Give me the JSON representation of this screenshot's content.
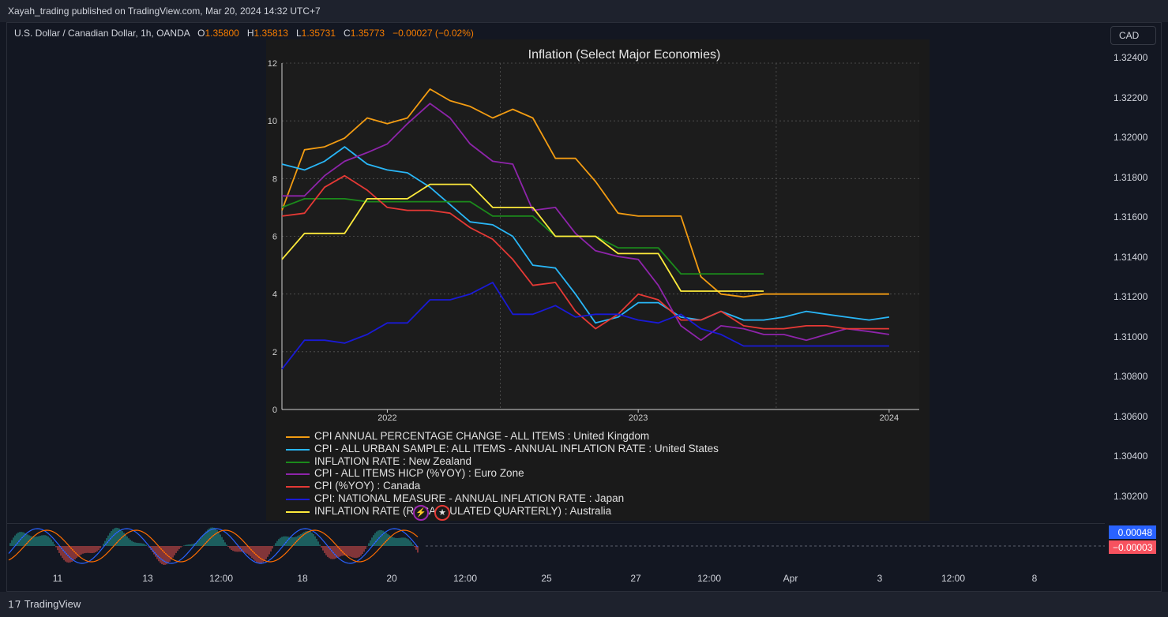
{
  "header": {
    "published_text": "Xayah_trading published on TradingView.com, Mar 20, 2024 14:32 UTC+7"
  },
  "symbol": {
    "name": "U.S. Dollar / Canadian Dollar, 1h, OANDA",
    "open_label": "O",
    "open": "1.35800",
    "high_label": "H",
    "high": "1.35813",
    "low_label": "L",
    "low": "1.35731",
    "close_label": "C",
    "close": "1.35773",
    "change": "−0.00027 (−0.02%)"
  },
  "currency_button": "CAD",
  "price_axis": [
    "1.32400",
    "1.32200",
    "1.32000",
    "1.31800",
    "1.31600",
    "1.31400",
    "1.31200",
    "1.31000",
    "1.30800",
    "1.30600",
    "1.30400",
    "1.30200"
  ],
  "oscillator": {
    "badge_up": "0.00048",
    "badge_down": "−0.00003",
    "badge_up_color": "#2962ff",
    "badge_down_color": "#f7525f"
  },
  "time_axis": [
    "11",
    "13",
    "12:00",
    "18",
    "20",
    "12:00",
    "25",
    "27",
    "12:00",
    "Apr",
    "3",
    "12:00",
    "8"
  ],
  "footer": {
    "brand": "TradingView"
  },
  "colors": {
    "background": "#131722",
    "inset_background": "#1a1a1a",
    "osc_up": "#26a69a",
    "osc_down": "#ef5350"
  },
  "chart_data": {
    "type": "line",
    "title": "Inflation (Select Major Economies)",
    "xlabel": "",
    "ylabel": "",
    "x_ticks": [
      "2022",
      "2023",
      "2024"
    ],
    "x_tick_values": [
      2022.0,
      2023.0,
      2024.0
    ],
    "xlim": [
      2021.58,
      2024.12
    ],
    "ylim": [
      0,
      12
    ],
    "y_ticks": [
      0,
      2,
      4,
      6,
      8,
      10,
      12
    ],
    "grid": true,
    "legend_position": "bottom",
    "series": [
      {
        "name": "CPI ANNUAL PERCENTAGE CHANGE - ALL ITEMS : United Kingdom",
        "color": "#f39c12",
        "x": [
          2021.58,
          2021.67,
          2021.75,
          2021.83,
          2021.92,
          2022.0,
          2022.08,
          2022.17,
          2022.25,
          2022.33,
          2022.42,
          2022.5,
          2022.58,
          2022.67,
          2022.75,
          2022.83,
          2022.92,
          2023.0,
          2023.08,
          2023.17,
          2023.25,
          2023.33,
          2023.42,
          2023.5,
          2023.58,
          2023.67,
          2023.75,
          2023.83,
          2023.92,
          2024.0
        ],
        "values": [
          6.9,
          9.0,
          9.1,
          9.4,
          10.1,
          9.9,
          10.1,
          11.1,
          10.7,
          10.5,
          10.1,
          10.4,
          10.1,
          8.7,
          8.7,
          7.9,
          6.8,
          6.7,
          6.7,
          6.7,
          4.6,
          4.0,
          3.9,
          4.0,
          4.0,
          4.0,
          4.0,
          4.0,
          4.0,
          4.0
        ]
      },
      {
        "name": "CPI - ALL URBAN SAMPLE: ALL ITEMS - ANNUAL INFLATION RATE : United States",
        "color": "#29b6f6",
        "x": [
          2021.58,
          2021.67,
          2021.75,
          2021.83,
          2021.92,
          2022.0,
          2022.08,
          2022.17,
          2022.25,
          2022.33,
          2022.42,
          2022.5,
          2022.58,
          2022.67,
          2022.75,
          2022.83,
          2022.92,
          2023.0,
          2023.08,
          2023.17,
          2023.25,
          2023.33,
          2023.42,
          2023.5,
          2023.58,
          2023.67,
          2023.75,
          2023.83,
          2023.92,
          2024.0
        ],
        "values": [
          8.5,
          8.3,
          8.6,
          9.1,
          8.5,
          8.3,
          8.2,
          7.7,
          7.1,
          6.5,
          6.4,
          6.0,
          5.0,
          4.9,
          4.0,
          3.0,
          3.2,
          3.7,
          3.7,
          3.2,
          3.1,
          3.4,
          3.1,
          3.1,
          3.2,
          3.4,
          3.3,
          3.2,
          3.1,
          3.2
        ]
      },
      {
        "name": "INFLATION RATE : New Zealand",
        "color": "#1b8a1b",
        "x": [
          2021.58,
          2021.67,
          2021.75,
          2021.83,
          2021.92,
          2022.0,
          2022.08,
          2022.17,
          2022.25,
          2022.33,
          2022.42,
          2022.5,
          2022.58,
          2022.67,
          2022.75,
          2022.83,
          2022.92,
          2023.0,
          2023.08,
          2023.17,
          2023.25,
          2023.33,
          2023.42,
          2023.5
        ],
        "values": [
          7.0,
          7.3,
          7.3,
          7.3,
          7.2,
          7.2,
          7.2,
          7.2,
          7.2,
          7.2,
          6.7,
          6.7,
          6.7,
          6.0,
          6.0,
          6.0,
          5.6,
          5.6,
          5.6,
          4.7,
          4.7,
          4.7,
          4.7,
          4.7
        ]
      },
      {
        "name": "CPI - ALL ITEMS HICP (%YOY) : Euro Zone",
        "color": "#8e24aa",
        "x": [
          2021.58,
          2021.67,
          2021.75,
          2021.83,
          2021.92,
          2022.0,
          2022.08,
          2022.17,
          2022.25,
          2022.33,
          2022.42,
          2022.5,
          2022.58,
          2022.67,
          2022.75,
          2022.83,
          2022.92,
          2023.0,
          2023.08,
          2023.17,
          2023.25,
          2023.33,
          2023.42,
          2023.5,
          2023.58,
          2023.67,
          2023.75,
          2023.83,
          2023.92,
          2024.0
        ],
        "values": [
          7.4,
          7.4,
          8.1,
          8.6,
          8.9,
          9.2,
          9.9,
          10.6,
          10.1,
          9.2,
          8.6,
          8.5,
          6.9,
          7.0,
          6.1,
          5.5,
          5.3,
          5.2,
          4.3,
          2.9,
          2.4,
          2.9,
          2.8,
          2.6,
          2.6,
          2.4,
          2.6,
          2.8,
          2.7,
          2.6
        ]
      },
      {
        "name": "CPI (%YOY) : Canada",
        "color": "#e53935",
        "x": [
          2021.58,
          2021.67,
          2021.75,
          2021.83,
          2021.92,
          2022.0,
          2022.08,
          2022.17,
          2022.25,
          2022.33,
          2022.42,
          2022.5,
          2022.58,
          2022.67,
          2022.75,
          2022.83,
          2022.92,
          2023.0,
          2023.08,
          2023.17,
          2023.25,
          2023.33,
          2023.42,
          2023.5,
          2023.58,
          2023.67,
          2023.75,
          2023.83,
          2023.92,
          2024.0
        ],
        "values": [
          6.7,
          6.8,
          7.7,
          8.1,
          7.6,
          7.0,
          6.9,
          6.9,
          6.8,
          6.3,
          5.9,
          5.2,
          4.3,
          4.4,
          3.4,
          2.8,
          3.3,
          4.0,
          3.8,
          3.1,
          3.1,
          3.4,
          2.9,
          2.8,
          2.8,
          2.9,
          2.9,
          2.8,
          2.8,
          2.8
        ]
      },
      {
        "name": "CPI: NATIONAL MEASURE - ANNUAL INFLATION RATE : Japan",
        "color": "#1a1ad6",
        "x": [
          2021.58,
          2021.67,
          2021.75,
          2021.83,
          2021.92,
          2022.0,
          2022.08,
          2022.17,
          2022.25,
          2022.33,
          2022.42,
          2022.5,
          2022.58,
          2022.67,
          2022.75,
          2022.83,
          2022.92,
          2023.0,
          2023.08,
          2023.17,
          2023.25,
          2023.33,
          2023.42,
          2023.5,
          2023.58,
          2023.67,
          2023.75,
          2023.83,
          2023.92,
          2024.0
        ],
        "values": [
          1.4,
          2.4,
          2.4,
          2.3,
          2.6,
          3.0,
          3.0,
          3.8,
          3.8,
          4.0,
          4.4,
          3.3,
          3.3,
          3.6,
          3.2,
          3.3,
          3.3,
          3.1,
          3.0,
          3.3,
          2.8,
          2.6,
          2.2,
          2.2,
          2.2,
          2.2,
          2.2,
          2.2,
          2.2,
          2.2
        ]
      },
      {
        "name": "INFLATION RATE (RECALCULATED QUARTERLY) : Australia",
        "color": "#ffeb3b",
        "x": [
          2021.58,
          2021.67,
          2021.75,
          2021.83,
          2021.92,
          2022.0,
          2022.08,
          2022.17,
          2022.25,
          2022.33,
          2022.42,
          2022.5,
          2022.58,
          2022.67,
          2022.75,
          2022.83,
          2022.92,
          2023.0,
          2023.08,
          2023.17,
          2023.25,
          2023.33,
          2023.42,
          2023.5
        ],
        "values": [
          5.2,
          6.1,
          6.1,
          6.1,
          7.3,
          7.3,
          7.3,
          7.8,
          7.8,
          7.8,
          7.0,
          7.0,
          7.0,
          6.0,
          6.0,
          6.0,
          5.4,
          5.4,
          5.4,
          4.1,
          4.1,
          4.1,
          4.1,
          4.1
        ]
      }
    ]
  }
}
